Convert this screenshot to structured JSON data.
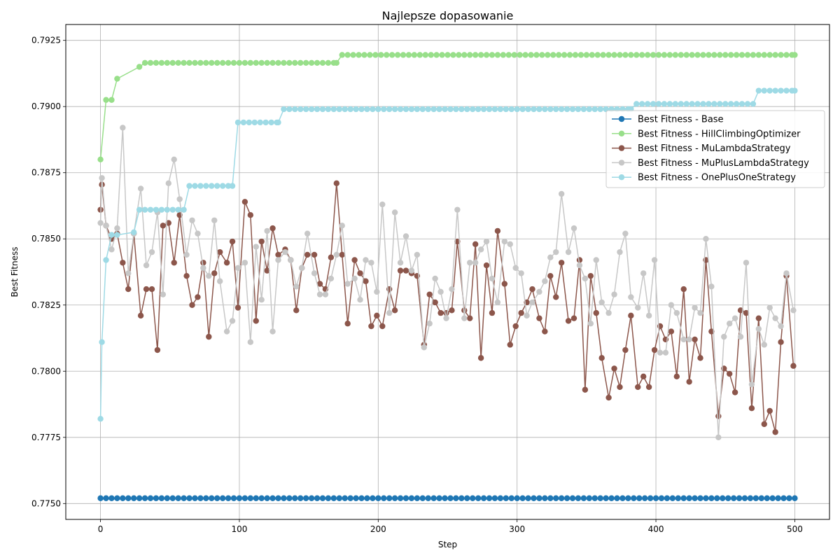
{
  "chart_data": {
    "type": "line",
    "title": "Najlepsze dopasowanie",
    "xlabel": "Step",
    "ylabel": "Best Fitness",
    "xlim": [
      -25,
      525
    ],
    "ylim": [
      0.7744,
      0.7931
    ],
    "x_ticks": [
      0,
      100,
      200,
      300,
      400,
      500
    ],
    "x_tick_labels": [
      "0",
      "100",
      "200",
      "300",
      "400",
      "500"
    ],
    "y_ticks": [
      0.775,
      0.7775,
      0.78,
      0.7825,
      0.785,
      0.7875,
      0.79,
      0.7925
    ],
    "y_tick_labels": [
      "0.7750",
      "0.7775",
      "0.7800",
      "0.7825",
      "0.7850",
      "0.7875",
      "0.7900",
      "0.7925"
    ],
    "grid": true,
    "legend_position": "center-right",
    "series": [
      {
        "name": "Best Fitness - Base",
        "color": "#1f77b4",
        "x": [
          0,
          500
        ],
        "values": [
          0.7752,
          0.7752
        ]
      },
      {
        "name": "Best Fitness - HillClimbingOptimizer",
        "color": "#98df8a",
        "x": [
          0,
          4,
          8,
          12,
          28,
          32,
          170,
          174,
          500
        ],
        "values": [
          0.788,
          0.79025,
          0.79025,
          0.79105,
          0.7915,
          0.79165,
          0.79165,
          0.79195,
          0.79195
        ]
      },
      {
        "name": "Best Fitness - MuLambdaStrategy",
        "color": "#8c564b",
        "x": [
          0,
          1,
          4,
          8,
          12,
          16,
          20,
          24,
          29,
          33,
          37,
          41,
          45,
          49,
          53,
          57,
          62,
          66,
          70,
          74,
          78,
          82,
          86,
          91,
          95,
          99,
          104,
          108,
          112,
          116,
          120,
          124,
          128,
          133,
          137,
          141,
          145,
          149,
          154,
          158,
          162,
          166,
          170,
          174,
          178,
          183,
          187,
          191,
          195,
          199,
          203,
          208,
          212,
          216,
          220,
          224,
          228,
          233,
          237,
          241,
          245,
          249,
          253,
          257,
          262,
          266,
          270,
          274,
          278,
          282,
          286,
          291,
          295,
          299,
          303,
          307,
          311,
          316,
          320,
          324,
          328,
          332,
          337,
          341,
          345,
          349,
          353,
          357,
          361,
          366,
          370,
          374,
          378,
          382,
          387,
          391,
          395,
          399,
          403,
          407,
          411,
          415,
          420,
          424,
          428,
          432,
          436,
          440,
          445,
          449,
          453,
          457,
          461,
          465,
          469,
          474,
          478,
          482,
          486,
          490,
          494,
          499
        ],
        "values": [
          0.7861,
          0.78705,
          0.7855,
          0.785,
          0.7852,
          0.7841,
          0.7831,
          0.7852,
          0.7821,
          0.7831,
          0.7831,
          0.7808,
          0.7855,
          0.7856,
          0.7841,
          0.7859,
          0.7836,
          0.7825,
          0.7828,
          0.7841,
          0.7813,
          0.7837,
          0.7845,
          0.7841,
          0.7849,
          0.7824,
          0.7864,
          0.7859,
          0.7819,
          0.7849,
          0.7838,
          0.7854,
          0.7844,
          0.7846,
          0.7842,
          0.7823,
          0.7839,
          0.7844,
          0.7844,
          0.7833,
          0.7831,
          0.7843,
          0.7871,
          0.7844,
          0.7818,
          0.7842,
          0.7837,
          0.7834,
          0.7817,
          0.7821,
          0.7817,
          0.7831,
          0.7823,
          0.7838,
          0.7838,
          0.7837,
          0.7836,
          0.781,
          0.7829,
          0.7826,
          0.7822,
          0.7822,
          0.7823,
          0.7849,
          0.7823,
          0.782,
          0.7848,
          0.7805,
          0.784,
          0.7822,
          0.7853,
          0.7833,
          0.781,
          0.7817,
          0.7822,
          0.7826,
          0.7831,
          0.782,
          0.7815,
          0.7836,
          0.7828,
          0.7841,
          0.7819,
          0.782,
          0.7842,
          0.7793,
          0.7836,
          0.7822,
          0.7805,
          0.779,
          0.7801,
          0.7794,
          0.7808,
          0.7821,
          0.7794,
          0.7798,
          0.7794,
          0.7808,
          0.7817,
          0.7812,
          0.7815,
          0.7798,
          0.7831,
          0.7796,
          0.7812,
          0.7805,
          0.7842,
          0.7815,
          0.7783,
          0.7801,
          0.7799,
          0.7792,
          0.7823,
          0.7822,
          0.7786,
          0.782,
          0.778,
          0.7785,
          0.7777,
          0.7811,
          0.7836,
          0.7802
        ]
      },
      {
        "name": "Best Fitness - MuPlusLambdaStrategy",
        "color": "#c7c7c7",
        "x": [
          0,
          1,
          4,
          8,
          12,
          16,
          20,
          24,
          29,
          33,
          37,
          41,
          45,
          49,
          53,
          57,
          62,
          66,
          70,
          74,
          78,
          82,
          86,
          91,
          95,
          99,
          104,
          108,
          112,
          116,
          120,
          124,
          128,
          133,
          137,
          141,
          145,
          149,
          154,
          158,
          162,
          166,
          170,
          174,
          178,
          183,
          187,
          191,
          195,
          199,
          203,
          208,
          212,
          216,
          220,
          224,
          228,
          233,
          237,
          241,
          245,
          249,
          253,
          257,
          262,
          266,
          270,
          274,
          278,
          282,
          286,
          291,
          295,
          299,
          303,
          307,
          311,
          316,
          320,
          324,
          328,
          332,
          337,
          341,
          345,
          349,
          353,
          357,
          361,
          366,
          370,
          374,
          378,
          382,
          387,
          391,
          395,
          399,
          403,
          407,
          411,
          415,
          420,
          424,
          428,
          432,
          436,
          440,
          445,
          449,
          453,
          457,
          461,
          465,
          469,
          474,
          478,
          482,
          486,
          490,
          494,
          499
        ],
        "values": [
          0.7856,
          0.7873,
          0.7855,
          0.7846,
          0.7854,
          0.7892,
          0.7837,
          0.7852,
          0.7869,
          0.784,
          0.7845,
          0.786,
          0.7829,
          0.7871,
          0.788,
          0.7865,
          0.7844,
          0.7857,
          0.7852,
          0.7839,
          0.7836,
          0.7857,
          0.7834,
          0.7815,
          0.7819,
          0.7839,
          0.7841,
          0.7811,
          0.7847,
          0.7827,
          0.7853,
          0.7815,
          0.7842,
          0.7845,
          0.7842,
          0.7832,
          0.7839,
          0.7852,
          0.7837,
          0.7829,
          0.7829,
          0.7835,
          0.7844,
          0.7855,
          0.7833,
          0.7835,
          0.7827,
          0.7842,
          0.7841,
          0.783,
          0.7863,
          0.7822,
          0.786,
          0.7841,
          0.7851,
          0.7838,
          0.7844,
          0.7809,
          0.7818,
          0.7835,
          0.783,
          0.782,
          0.7831,
          0.7861,
          0.782,
          0.7841,
          0.7841,
          0.7846,
          0.7849,
          0.7835,
          0.7826,
          0.7849,
          0.7848,
          0.7839,
          0.7837,
          0.7821,
          0.7826,
          0.783,
          0.7834,
          0.7843,
          0.7845,
          0.7867,
          0.7845,
          0.7854,
          0.784,
          0.7835,
          0.7818,
          0.7842,
          0.7826,
          0.7822,
          0.7829,
          0.7845,
          0.7852,
          0.7828,
          0.7824,
          0.7837,
          0.7821,
          0.7842,
          0.7807,
          0.7807,
          0.7825,
          0.7822,
          0.7812,
          0.7812,
          0.7824,
          0.7822,
          0.785,
          0.7832,
          0.7775,
          0.7813,
          0.7818,
          0.782,
          0.7813,
          0.7841,
          0.7795,
          0.7816,
          0.781,
          0.7824,
          0.782,
          0.7817,
          0.7837,
          0.7823
        ]
      },
      {
        "name": "Best Fitness - OnePlusOneStrategy",
        "color": "#9edae5",
        "x": [
          0,
          1,
          4,
          8,
          12,
          24,
          28,
          60,
          64,
          95,
          99,
          128,
          132,
          382,
          386,
          470,
          474,
          500
        ],
        "values": [
          0.7782,
          0.7811,
          0.7842,
          0.78515,
          0.78515,
          0.78525,
          0.7861,
          0.7861,
          0.787,
          0.787,
          0.7894,
          0.7894,
          0.7899,
          0.7899,
          0.7901,
          0.7901,
          0.7906,
          0.7906
        ]
      }
    ]
  }
}
